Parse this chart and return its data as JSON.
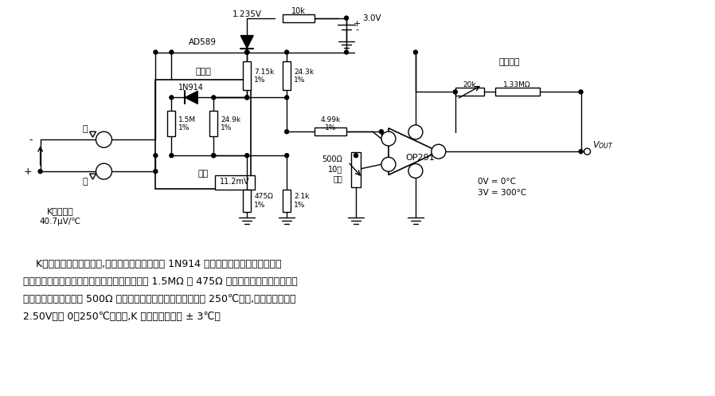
{
  "bg_color": "#ffffff",
  "fig_width": 8.98,
  "fig_height": 4.97,
  "dpi": 100,
  "paragraph_text": [
    "    K型热偶端放置隔热块中,热电偶结的环境温度由 1N914 二极管连续控制。二极管通过",
    "反馈小电压可修正在结上产生的热电动势。通过 1.5MΩ 和 475Ω 送至运放。校准时将热电偶",
    "结放在零度冰水中。调 500Ω 使输出为零压；然后将热电偶插入 250℃炉中,调量程供输出为",
    "2.50V。在 0～250℃范围内,K 型热偶的精度为 ± 3℃。"
  ],
  "font_size_text": 9.0
}
